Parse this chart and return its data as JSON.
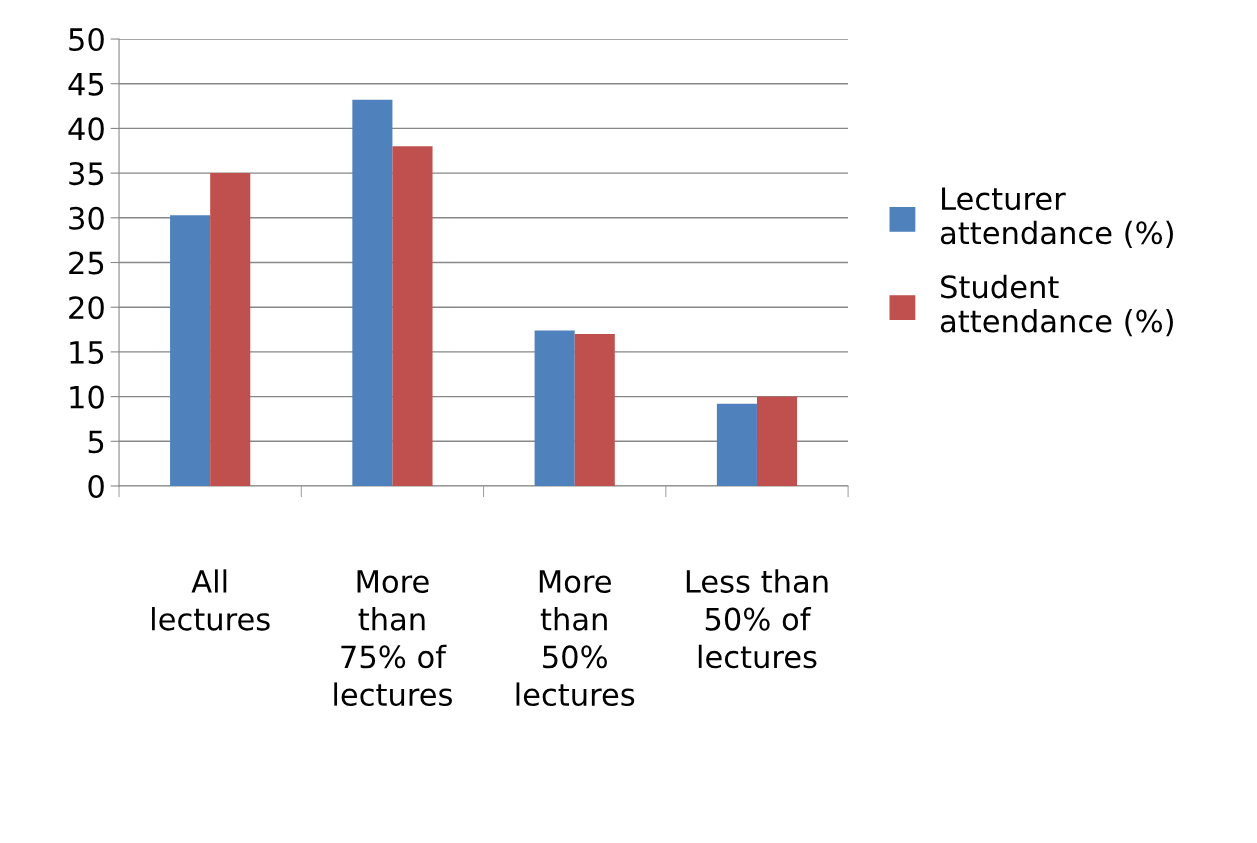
{
  "chart_data": {
    "type": "bar",
    "categories": [
      "All\nlectures",
      "More\nthan\n75% of\nlectures",
      "More\nthan\n50%\nlectures",
      "Less than\n50% of\nlectures"
    ],
    "series": [
      {
        "name": "Lecturer\nattendance (%)",
        "color": "#4f81bd",
        "values": [
          30.3,
          43.2,
          17.4,
          9.2
        ]
      },
      {
        "name": "Student\nattendance (%)",
        "color": "#c0504d",
        "values": [
          35,
          38,
          17,
          10
        ]
      }
    ],
    "ylim": [
      0,
      50
    ],
    "yticks": [
      0,
      5,
      10,
      15,
      20,
      25,
      30,
      35,
      40,
      45,
      50
    ],
    "grid": "y",
    "legend": "right"
  }
}
